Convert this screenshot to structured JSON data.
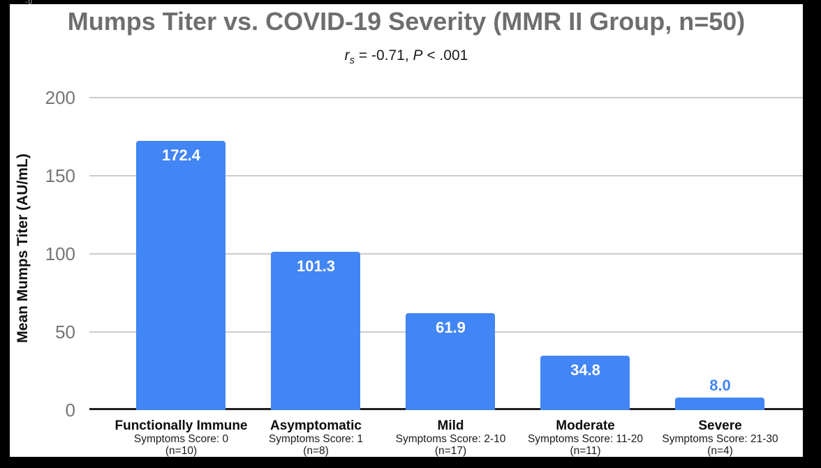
{
  "frame": {
    "page_background": "#000000",
    "chart_background": "#ffffff"
  },
  "artifact_text": "-0",
  "header": {
    "title": "Mumps Titer vs. COVID-19 Severity (MMR II Group, n=50)",
    "subtitle": {
      "r": "r",
      "s": "s",
      "mid": " = -0.71, ",
      "p": "P",
      "tail": " < .001"
    }
  },
  "chart_data": {
    "type": "bar",
    "title": "Mumps Titer vs. COVID-19 Severity (MMR II Group, n=50)",
    "subtitle_plain": "rs = -0.71, P < .001",
    "xlabel": "",
    "ylabel": "Mean Mumps Titer (AU/mL)",
    "ylim": [
      0,
      200
    ],
    "yticks": [
      0,
      50,
      100,
      150,
      200
    ],
    "grid": true,
    "legend": "none",
    "bar_color": "#4285F4",
    "value_label_color_inside": "#ffffff",
    "value_label_color_above": "#4285F4",
    "categories": [
      {
        "label": "Functionally Immune",
        "score": "Symptoms Score: 0",
        "n": "(n=10)"
      },
      {
        "label": "Asymptomatic",
        "score": "Symptoms Score: 1",
        "n": "(n=8)"
      },
      {
        "label": "Mild",
        "score": "Symptoms Score: 2-10",
        "n": "(n=17)"
      },
      {
        "label": "Moderate",
        "score": "Symptoms Score: 11-20",
        "n": "(n=11)"
      },
      {
        "label": "Severe",
        "score": "Symptoms Score: 21-30",
        "n": "(n=4)"
      }
    ],
    "values": [
      172.4,
      101.3,
      61.9,
      34.8,
      8.0
    ],
    "value_labels": [
      "172.4",
      "101.3",
      "61.9",
      "34.8",
      "8.0"
    ]
  },
  "colors": {
    "title": "#6e6e6e",
    "tick_label": "#757575",
    "gridline": "#cccccc",
    "baseline": "#1f1f1f",
    "category_label": "#0d0d0d"
  }
}
